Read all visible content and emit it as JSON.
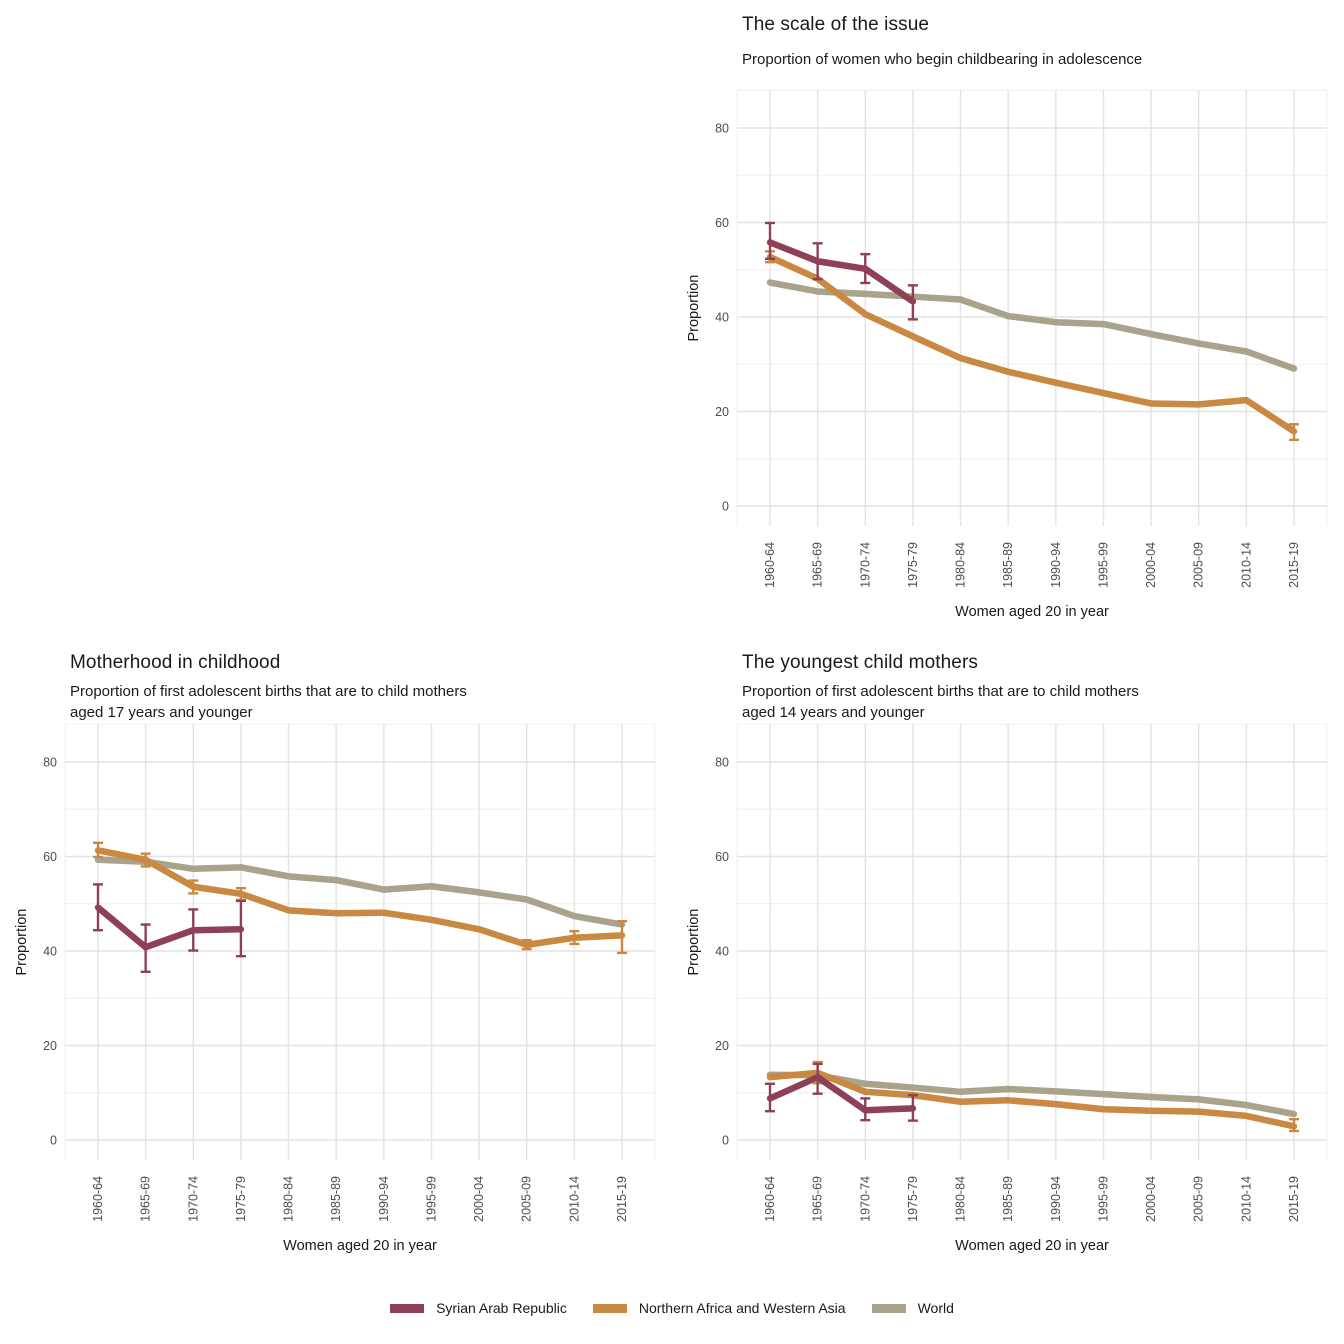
{
  "figure": {
    "background": "#ffffff"
  },
  "colors": {
    "syria": "#8e4057",
    "nawa": "#c98942",
    "world": "#a9a38c",
    "grid_major": "#e3e3e3",
    "grid_minor": "#efefef",
    "tick_text": "#4d4d4d",
    "axis_title_text": "#1a1a1a",
    "title_text": "#1a1a1a"
  },
  "legend": {
    "position": "bottom-center",
    "items": [
      {
        "key": "syria",
        "label": "Syrian Arab Republic"
      },
      {
        "key": "nawa",
        "label": "Northern Africa and Western Asia"
      },
      {
        "key": "world",
        "label": "World"
      }
    ]
  },
  "chart_data": [
    {
      "id": "the-scale-of-the-issue",
      "type": "line",
      "position": "top-right",
      "title": "The scale of the issue",
      "subtitle": "Proportion of women who begin childbearing in adolescence",
      "xlabel": "Women aged 20 in year",
      "ylabel": "Proportion",
      "x_categories": [
        "1960-64",
        "1965-69",
        "1970-74",
        "1975-79",
        "1980-84",
        "1985-89",
        "1990-94",
        "1995-99",
        "2000-04",
        "2005-09",
        "2010-14",
        "2015-19"
      ],
      "yticks": [
        0,
        20,
        40,
        60,
        80
      ],
      "ylim": [
        0,
        80
      ],
      "grid": "on",
      "series": [
        {
          "key": "syria",
          "name": "Syrian Arab Republic",
          "values": [
            55.8,
            51.8,
            50.2,
            43.3,
            null,
            null,
            null,
            null,
            null,
            null,
            null,
            null
          ],
          "err_lo": [
            52.3,
            48.0,
            47.2,
            39.5,
            null,
            null,
            null,
            null,
            null,
            null,
            null,
            null
          ],
          "err_hi": [
            59.9,
            55.6,
            53.3,
            46.7,
            null,
            null,
            null,
            null,
            null,
            null,
            null,
            null
          ]
        },
        {
          "key": "nawa",
          "name": "Northern Africa and Western Asia",
          "values": [
            52.7,
            48.1,
            40.6,
            35.9,
            31.3,
            28.4,
            26.1,
            23.9,
            21.7,
            21.5,
            22.4,
            15.8
          ],
          "err_lo": [
            51.6,
            null,
            null,
            null,
            null,
            null,
            null,
            null,
            null,
            null,
            null,
            14.0
          ],
          "err_hi": [
            53.9,
            null,
            null,
            null,
            null,
            null,
            null,
            null,
            null,
            null,
            null,
            17.3
          ]
        },
        {
          "key": "world",
          "name": "World",
          "values": [
            47.3,
            45.4,
            44.9,
            44.3,
            43.7,
            40.2,
            38.9,
            38.5,
            36.4,
            34.4,
            32.7,
            29.1
          ],
          "err_lo": [
            null,
            null,
            null,
            null,
            null,
            null,
            null,
            null,
            null,
            null,
            null,
            null
          ],
          "err_hi": [
            null,
            null,
            null,
            null,
            null,
            null,
            null,
            null,
            null,
            null,
            null,
            null
          ]
        }
      ]
    },
    {
      "id": "motherhood-in-childhood",
      "type": "line",
      "position": "bottom-left",
      "title": "Motherhood in childhood",
      "subtitle": "Proportion of first adolescent births that are to child mothers\naged 17 years and younger",
      "xlabel": "Women aged 20 in year",
      "ylabel": "Proportion",
      "x_categories": [
        "1960-64",
        "1965-69",
        "1970-74",
        "1975-79",
        "1980-84",
        "1985-89",
        "1990-94",
        "1995-99",
        "2000-04",
        "2005-09",
        "2010-14",
        "2015-19"
      ],
      "yticks": [
        0,
        20,
        40,
        60,
        80
      ],
      "ylim": [
        0,
        80
      ],
      "grid": "on",
      "series": [
        {
          "key": "syria",
          "name": "Syrian Arab Republic",
          "values": [
            49.2,
            40.8,
            44.4,
            44.6,
            null,
            null,
            null,
            null,
            null,
            null,
            null,
            null
          ],
          "err_lo": [
            44.4,
            35.6,
            40.1,
            38.9,
            null,
            null,
            null,
            null,
            null,
            null,
            null,
            null
          ],
          "err_hi": [
            54.1,
            45.6,
            48.8,
            50.6,
            null,
            null,
            null,
            null,
            null,
            null,
            null,
            null
          ]
        },
        {
          "key": "nawa",
          "name": "Northern Africa and Western Asia",
          "values": [
            61.3,
            59.3,
            53.6,
            52.1,
            48.6,
            48.0,
            48.1,
            46.6,
            44.6,
            41.3,
            42.8,
            43.3
          ],
          "err_lo": [
            59.9,
            57.9,
            52.2,
            50.8,
            null,
            null,
            null,
            null,
            null,
            40.4,
            41.5,
            39.6
          ],
          "err_hi": [
            62.9,
            60.6,
            54.9,
            53.3,
            null,
            null,
            null,
            null,
            null,
            42.3,
            44.2,
            46.3
          ]
        },
        {
          "key": "world",
          "name": "World",
          "values": [
            59.3,
            58.9,
            57.4,
            57.7,
            55.8,
            55.0,
            53.0,
            53.7,
            52.4,
            50.9,
            47.4,
            45.6
          ],
          "err_lo": [
            null,
            null,
            null,
            null,
            null,
            null,
            null,
            null,
            null,
            null,
            null,
            null
          ],
          "err_hi": [
            null,
            null,
            null,
            null,
            null,
            null,
            null,
            null,
            null,
            null,
            null,
            null
          ]
        }
      ]
    },
    {
      "id": "the-youngest-child-mothers",
      "type": "line",
      "position": "bottom-right",
      "title": "The youngest child mothers",
      "subtitle": "Proportion of first adolescent births that are to child mothers\naged 14 years and younger",
      "xlabel": "Women aged 20 in year",
      "ylabel": "Proportion",
      "x_categories": [
        "1960-64",
        "1965-69",
        "1970-74",
        "1975-79",
        "1980-84",
        "1985-89",
        "1990-94",
        "1995-99",
        "2000-04",
        "2005-09",
        "2010-14",
        "2015-19"
      ],
      "yticks": [
        0,
        20,
        40,
        60,
        80
      ],
      "ylim": [
        0,
        80
      ],
      "grid": "on",
      "series": [
        {
          "key": "syria",
          "name": "Syrian Arab Republic",
          "values": [
            8.8,
            13.3,
            6.3,
            6.7,
            null,
            null,
            null,
            null,
            null,
            null,
            null,
            null
          ],
          "err_lo": [
            6.1,
            9.8,
            4.2,
            4.1,
            null,
            null,
            null,
            null,
            null,
            null,
            null,
            null
          ],
          "err_hi": [
            11.9,
            16.1,
            8.8,
            9.5,
            null,
            null,
            null,
            null,
            null,
            null,
            null,
            null
          ]
        },
        {
          "key": "nawa",
          "name": "Northern Africa and Western Asia",
          "values": [
            13.3,
            14.2,
            10.2,
            9.5,
            8.1,
            8.4,
            7.6,
            6.5,
            6.2,
            6.0,
            5.1,
            2.9
          ],
          "err_lo": [
            null,
            12.0,
            null,
            null,
            null,
            null,
            null,
            null,
            null,
            null,
            null,
            1.9
          ],
          "err_hi": [
            null,
            16.5,
            null,
            null,
            null,
            null,
            null,
            null,
            null,
            null,
            null,
            4.4
          ]
        },
        {
          "key": "world",
          "name": "World",
          "values": [
            13.8,
            13.7,
            11.9,
            11.1,
            10.2,
            10.8,
            10.3,
            9.7,
            9.1,
            8.6,
            7.4,
            5.5
          ],
          "err_lo": [
            null,
            null,
            null,
            null,
            null,
            null,
            null,
            null,
            null,
            null,
            null,
            null
          ],
          "err_hi": [
            null,
            null,
            null,
            null,
            null,
            null,
            null,
            null,
            null,
            null,
            null,
            null
          ]
        }
      ]
    }
  ]
}
